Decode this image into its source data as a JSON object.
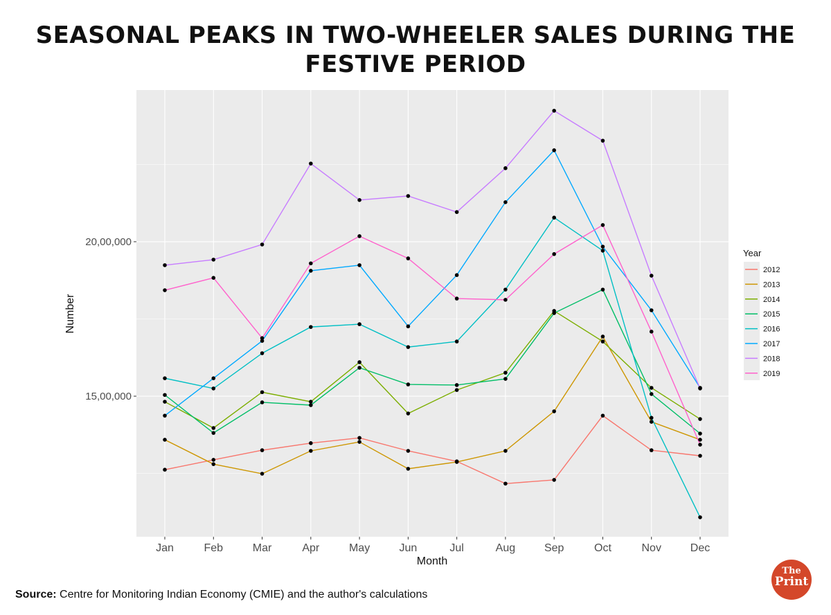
{
  "chart_data": {
    "type": "line",
    "title": "SEASONAL PEAKS IN TWO-WHEELER SALES DURING THE FESTIVE PERIOD",
    "xlabel": "Month",
    "ylabel": "Number",
    "categories": [
      "Jan",
      "Feb",
      "Mar",
      "Apr",
      "May",
      "Jun",
      "Jul",
      "Aug",
      "Sep",
      "Oct",
      "Nov",
      "Dec"
    ],
    "ylim": [
      1045000,
      2491000
    ],
    "yticks": [
      {
        "value": 1500000,
        "label": "15,00,000"
      },
      {
        "value": 2000000,
        "label": "20,00,000"
      }
    ],
    "grid": true,
    "legend": {
      "title": "Year",
      "placement": "right"
    },
    "series": [
      {
        "name": "2012",
        "color": "#F8766D",
        "values": [
          1262000,
          1294000,
          1325000,
          1348000,
          1365000,
          1323000,
          1289000,
          1217000,
          1229000,
          1437000,
          1325000,
          1307000
        ]
      },
      {
        "name": "2013",
        "color": "#CD9600",
        "values": [
          1359000,
          1280000,
          1249000,
          1323000,
          1352000,
          1265000,
          1287000,
          1323000,
          1451000,
          1693000,
          1417000,
          1359000
        ]
      },
      {
        "name": "2014",
        "color": "#7CAE00",
        "values": [
          1482000,
          1397000,
          1513000,
          1482000,
          1610000,
          1444000,
          1520000,
          1576000,
          1776000,
          1677000,
          1527000,
          1426000
        ]
      },
      {
        "name": "2015",
        "color": "#00BE67",
        "values": [
          1504000,
          1381000,
          1480000,
          1471000,
          1592000,
          1538000,
          1536000,
          1556000,
          1769000,
          1845000,
          1507000,
          1379000
        ]
      },
      {
        "name": "2016",
        "color": "#00BFC4",
        "values": [
          1558000,
          1525000,
          1639000,
          1724000,
          1733000,
          1659000,
          1677000,
          1845000,
          2078000,
          1971000,
          1430000,
          1108000
        ]
      },
      {
        "name": "2017",
        "color": "#00A9FF",
        "values": [
          1437000,
          1558000,
          1679000,
          1906000,
          1924000,
          1726000,
          1892000,
          2128000,
          2296000,
          1984000,
          1778000,
          1527000
        ]
      },
      {
        "name": "2018",
        "color": "#C77CFF",
        "values": [
          1924000,
          1942000,
          1991000,
          2253000,
          2135000,
          2148000,
          2096000,
          2238000,
          2424000,
          2327000,
          1890000,
          1525000
        ]
      },
      {
        "name": "2019",
        "color": "#FF61CC",
        "values": [
          1843000,
          1883000,
          1688000,
          1930000,
          2018000,
          1946000,
          1816000,
          1812000,
          1960000,
          2054000,
          1709000,
          1343000
        ]
      }
    ]
  },
  "source": {
    "label": "Source:",
    "text": " Centre for Monitoring Indian Economy (CMIE) and the author's calculations"
  },
  "logo": {
    "line1": "The",
    "line2": "Print"
  }
}
